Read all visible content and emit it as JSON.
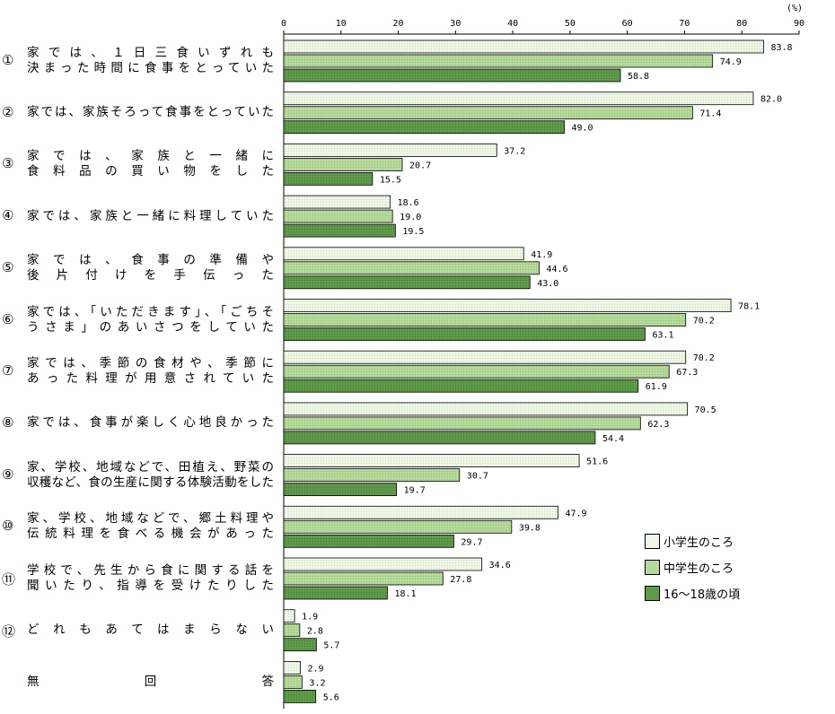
{
  "chart_data": {
    "type": "bar",
    "orientation": "horizontal",
    "unit_label": "(%)",
    "xlim": [
      0,
      90
    ],
    "ticks": [
      0,
      10,
      20,
      30,
      40,
      50,
      60,
      70,
      80,
      90
    ],
    "grid": false,
    "legend_position": "bottom-right",
    "categories": [
      {
        "num": "①",
        "lines": [
          "家では、１日三食いずれも",
          "決まった時間に食事をとっていた"
        ]
      },
      {
        "num": "②",
        "lines": [
          "家では、家族そろって食事をとっていた"
        ]
      },
      {
        "num": "③",
        "lines": [
          "家では、家族と一緒に",
          "食料品の買い物をした"
        ]
      },
      {
        "num": "④",
        "lines": [
          "家では、家族と一緒に料理していた"
        ]
      },
      {
        "num": "⑤",
        "lines": [
          "家では、食事の準備や",
          "後片付けを手伝った"
        ]
      },
      {
        "num": "⑥",
        "lines": [
          "家では、「いただきます」、「ごちそ",
          "うさま」のあいさつをしていた"
        ]
      },
      {
        "num": "⑦",
        "lines": [
          "家では、季節の食材や、季節に",
          "あった料理が用意されていた"
        ]
      },
      {
        "num": "⑧",
        "lines": [
          "家では、食事が楽しく心地良かった"
        ]
      },
      {
        "num": "⑨",
        "lines": [
          "家、学校、地域などで、田植え、野菜の",
          "収穫など、食の生産に関する体験活動をした"
        ]
      },
      {
        "num": "⑩",
        "lines": [
          "家、学校、地域などで、郷土料理や",
          "伝統料理を食べる機会があった"
        ]
      },
      {
        "num": "⑪",
        "lines": [
          "学校で、先生から食に関する話を",
          "聞いたり、指導を受けたりした"
        ]
      },
      {
        "num": "⑫",
        "lines": [
          "どれもあてはまらない"
        ]
      },
      {
        "num": "",
        "lines": [
          "無回答"
        ]
      }
    ],
    "series": [
      {
        "name": "小学生のころ",
        "color": "#eef6e6",
        "values": [
          83.8,
          82.0,
          37.2,
          18.6,
          41.9,
          78.1,
          70.2,
          70.5,
          51.6,
          47.9,
          34.6,
          1.9,
          2.9
        ],
        "labels": [
          "83.8",
          "82.0",
          "37.2",
          "18.6",
          "41.9",
          "78.1",
          "70.2",
          "70.5",
          "51.6",
          "47.9",
          "34.6",
          "1.9",
          "2.9"
        ]
      },
      {
        "name": "中学生のころ",
        "color": "#b4d99a",
        "values": [
          74.9,
          71.4,
          20.7,
          19.0,
          44.6,
          70.2,
          67.3,
          62.3,
          30.7,
          39.8,
          27.8,
          2.8,
          3.2
        ],
        "labels": [
          "74.9",
          "71.4",
          "20.7",
          "19.0",
          "44.6",
          "70.2",
          "67.3",
          "62.3",
          "30.7",
          "39.8",
          "27.8",
          "2.8",
          "3.2"
        ]
      },
      {
        "name": "16～18歳の頃",
        "color": "#5e9a4a",
        "values": [
          58.8,
          49.0,
          15.5,
          19.5,
          43.0,
          63.1,
          61.9,
          54.4,
          19.7,
          29.7,
          18.1,
          5.7,
          5.6
        ],
        "labels": [
          "58.8",
          "49.0",
          "15.5",
          "19.5",
          "43.0",
          "63.1",
          "61.9",
          "54.4",
          "19.7",
          "29.7",
          "18.1",
          "5.7",
          "5.6"
        ]
      }
    ]
  }
}
